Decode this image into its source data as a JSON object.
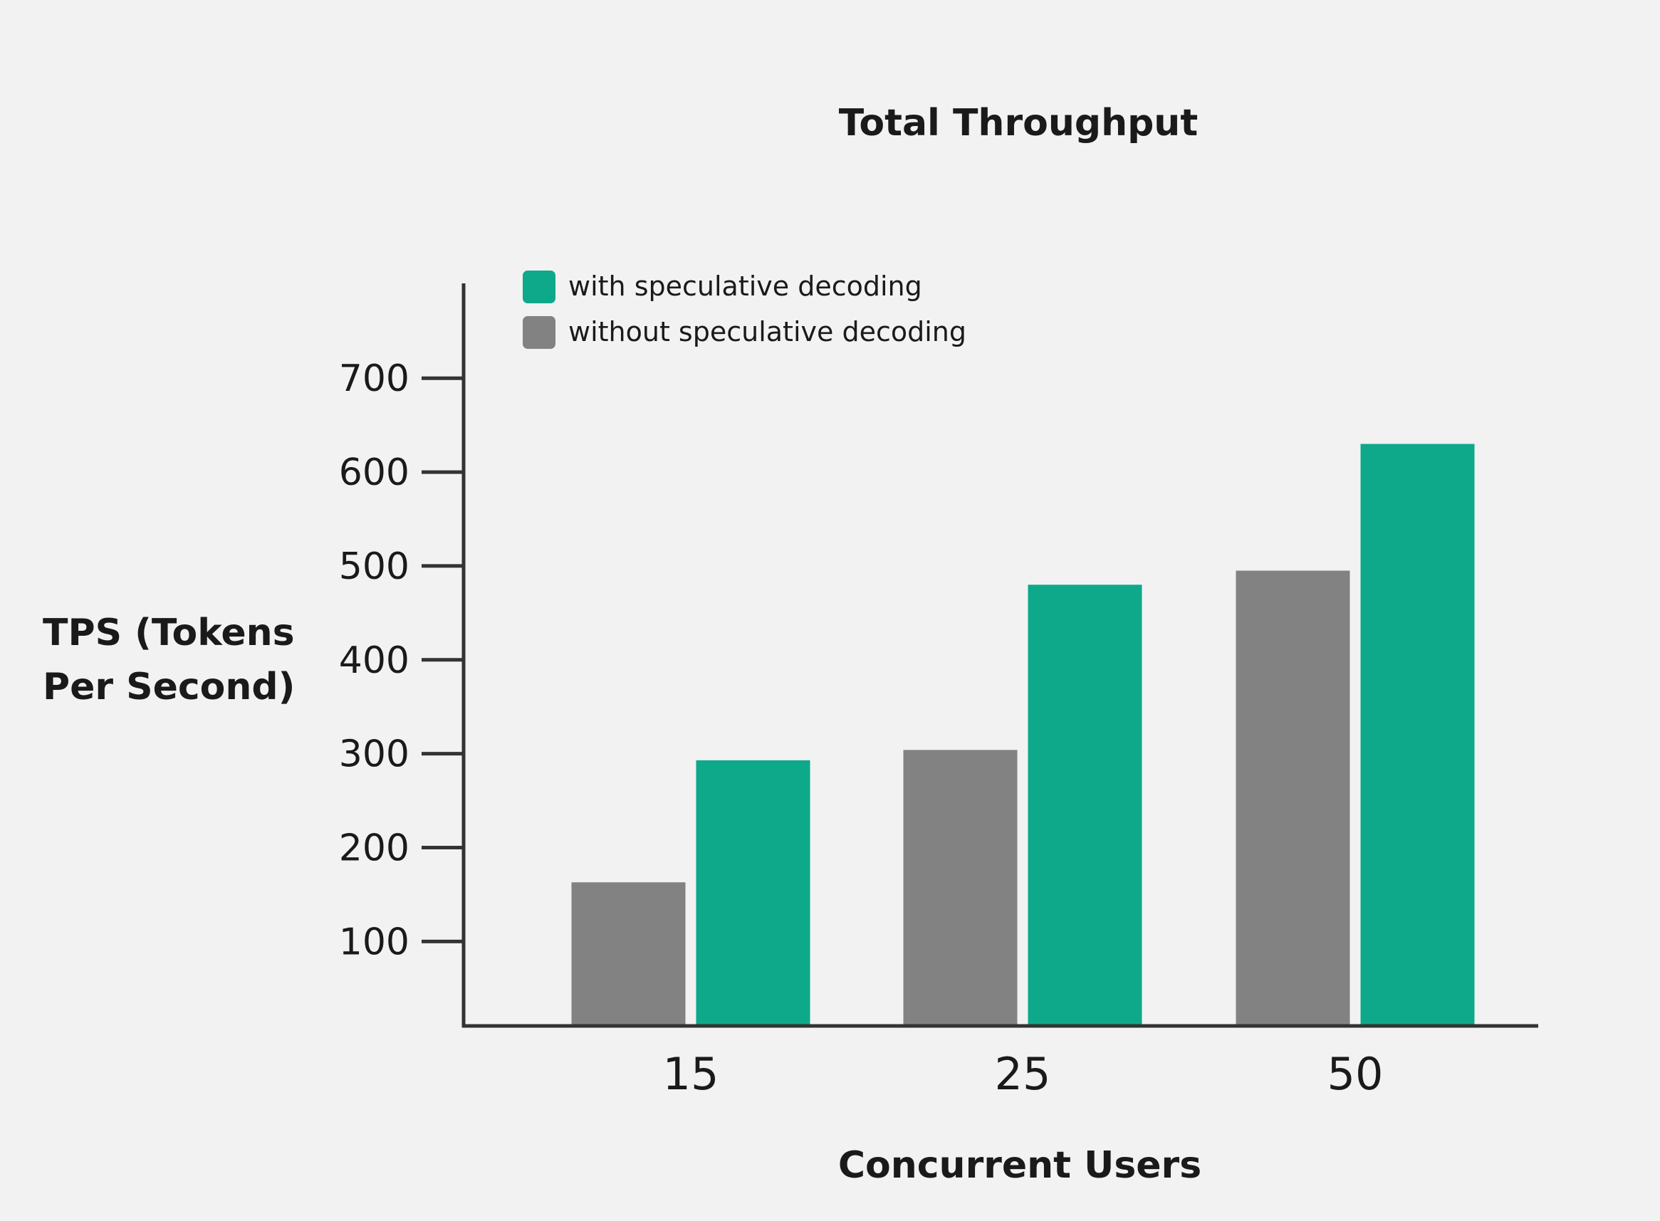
{
  "chart_data": {
    "type": "bar",
    "title": "Total Throughput",
    "xlabel": "Concurrent Users",
    "ylabel_lines": [
      "TPS (Tokens",
      "Per Second)"
    ],
    "categories": [
      "15",
      "25",
      "50"
    ],
    "series": [
      {
        "name": "without speculative decoding",
        "color": "#828282",
        "values": [
          163,
          304,
          495
        ]
      },
      {
        "name": "with speculative decoding",
        "color": "#0ea88a",
        "values": [
          293,
          480,
          630
        ]
      }
    ],
    "legend_order": [
      1,
      0
    ],
    "legend_position": "top-left",
    "yticks": [
      100,
      200,
      300,
      400,
      500,
      600,
      700
    ],
    "ylim": [
      10,
      800
    ],
    "grid": false
  }
}
